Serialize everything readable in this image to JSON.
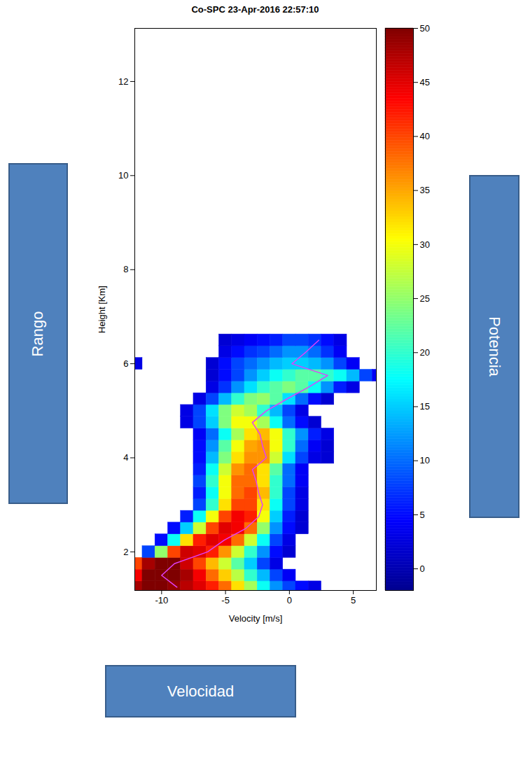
{
  "chart_data": {
    "type": "heatmap",
    "title": "Co-SPC 23-Apr-2016 22:57:10",
    "x_label": "Velocity [m/s]",
    "y_label": "Height [Km]",
    "xlim": [
      -12.1,
      6.8
    ],
    "ylim": [
      1.18,
      13.13
    ],
    "xticks": [
      -10,
      -5,
      0,
      5
    ],
    "yticks": [
      2,
      4,
      6,
      8,
      10,
      12
    ],
    "velocity_edges": [
      -12.5,
      -11.5,
      -10.5,
      -9.5,
      -8.5,
      -7.5,
      -6.5,
      -5.5,
      -4.5,
      -3.5,
      -2.5,
      -1.5,
      -0.5,
      0.5,
      1.5,
      2.5,
      3.5,
      4.5,
      5.5,
      6.5,
      7.5
    ],
    "height_edges": [
      1.125,
      1.375,
      1.625,
      1.875,
      2.125,
      2.375,
      2.625,
      2.875,
      3.125,
      3.375,
      3.625,
      3.875,
      4.125,
      4.375,
      4.625,
      4.875,
      5.125,
      5.375,
      5.625,
      5.875,
      6.125,
      6.375,
      6.625
    ],
    "cells": [
      [
        48,
        50,
        50,
        49,
        47,
        45,
        42,
        38,
        32,
        26,
        18,
        12,
        8,
        5,
        3,
        null,
        null,
        null,
        null,
        null
      ],
      [
        44,
        50,
        50,
        50,
        48,
        44,
        38,
        33,
        27,
        20,
        14,
        8,
        4,
        null,
        null,
        null,
        null,
        null,
        null,
        null
      ],
      [
        40,
        48,
        50,
        50,
        46,
        40,
        34,
        28,
        22,
        15,
        8,
        3,
        null,
        null,
        null,
        null,
        null,
        null,
        null,
        null
      ],
      [
        null,
        8,
        25,
        40,
        46,
        45,
        42,
        36,
        28,
        20,
        12,
        5,
        2,
        null,
        null,
        null,
        null,
        null,
        null,
        null
      ],
      [
        null,
        null,
        5,
        18,
        32,
        42,
        45,
        44,
        38,
        28,
        18,
        8,
        3,
        null,
        null,
        null,
        null,
        null,
        null,
        null
      ],
      [
        null,
        null,
        null,
        5,
        15,
        28,
        40,
        45,
        44,
        38,
        25,
        12,
        5,
        2,
        null,
        null,
        null,
        null,
        null,
        null
      ],
      [
        null,
        null,
        null,
        null,
        6,
        18,
        30,
        40,
        44,
        42,
        30,
        15,
        6,
        2,
        null,
        null,
        null,
        null,
        null,
        null
      ],
      [
        null,
        null,
        null,
        null,
        null,
        8,
        20,
        32,
        40,
        40,
        32,
        18,
        8,
        3,
        null,
        null,
        null,
        null,
        null,
        null
      ],
      [
        null,
        null,
        null,
        null,
        null,
        6,
        18,
        30,
        38,
        40,
        34,
        20,
        8,
        3,
        null,
        null,
        null,
        null,
        null,
        null
      ],
      [
        null,
        null,
        null,
        null,
        null,
        8,
        20,
        30,
        38,
        38,
        32,
        20,
        10,
        4,
        null,
        null,
        null,
        null,
        null,
        null
      ],
      [
        null,
        null,
        null,
        null,
        null,
        6,
        18,
        28,
        36,
        38,
        32,
        22,
        10,
        4,
        null,
        null,
        null,
        null,
        null,
        null
      ],
      [
        null,
        null,
        null,
        null,
        null,
        5,
        14,
        24,
        32,
        36,
        36,
        28,
        16,
        8,
        3,
        2,
        null,
        null,
        null,
        null
      ],
      [
        null,
        null,
        null,
        null,
        null,
        5,
        12,
        22,
        30,
        35,
        36,
        30,
        20,
        10,
        4,
        2,
        null,
        null,
        null,
        null
      ],
      [
        null,
        null,
        null,
        null,
        null,
        4,
        10,
        18,
        26,
        32,
        34,
        30,
        20,
        12,
        6,
        3,
        null,
        null,
        null,
        null
      ],
      [
        null,
        null,
        null,
        null,
        3,
        8,
        15,
        24,
        30,
        30,
        26,
        18,
        10,
        5,
        2,
        null,
        null,
        null,
        null,
        null
      ],
      [
        null,
        null,
        null,
        null,
        3,
        8,
        16,
        24,
        28,
        26,
        20,
        14,
        8,
        3,
        null,
        null,
        null,
        null,
        null,
        null
      ],
      [
        null,
        null,
        null,
        null,
        null,
        3,
        8,
        14,
        20,
        24,
        25,
        22,
        16,
        10,
        5,
        2,
        null,
        null,
        null,
        null
      ],
      [
        null,
        null,
        null,
        null,
        null,
        null,
        3,
        7,
        12,
        16,
        20,
        22,
        24,
        22,
        18,
        12,
        6,
        3,
        null,
        null
      ],
      [
        null,
        null,
        null,
        null,
        null,
        null,
        2,
        5,
        8,
        12,
        15,
        18,
        20,
        22,
        22,
        20,
        18,
        14,
        8,
        4
      ],
      [
        3,
        null,
        null,
        null,
        null,
        null,
        2,
        5,
        8,
        10,
        12,
        14,
        15,
        15,
        14,
        12,
        8,
        4,
        null,
        null
      ],
      [
        null,
        null,
        null,
        null,
        null,
        null,
        null,
        3,
        5,
        7,
        8,
        10,
        12,
        12,
        10,
        7,
        4,
        null,
        null,
        null
      ],
      [
        null,
        null,
        null,
        null,
        null,
        null,
        null,
        2,
        3,
        4,
        5,
        6,
        8,
        8,
        7,
        5,
        3,
        null,
        null,
        null
      ]
    ],
    "colorbar": {
      "range": [
        -2,
        50
      ],
      "ticks": [
        0,
        5,
        10,
        15,
        20,
        25,
        30,
        35,
        40,
        45,
        50
      ]
    },
    "mean_line": {
      "color": "#e040fb",
      "height": [
        1.25,
        1.5,
        1.75,
        2.0,
        2.25,
        2.5,
        2.75,
        3.0,
        3.25,
        3.5,
        3.75,
        4.0,
        4.25,
        4.5,
        4.75,
        5.0,
        5.25,
        5.5,
        5.75,
        6.0,
        6.25,
        6.5
      ],
      "velocity": [
        -8.8,
        -10.0,
        -9.0,
        -6.4,
        -5.1,
        -3.4,
        -2.4,
        -2.1,
        -2.4,
        -2.6,
        -2.9,
        -1.8,
        -2.1,
        -2.3,
        -2.9,
        -1.8,
        -0.2,
        1.5,
        3.0,
        0.2,
        1.3,
        2.3
      ]
    },
    "annotations": [
      "Rango",
      "Potencia",
      "Velocidad"
    ]
  }
}
